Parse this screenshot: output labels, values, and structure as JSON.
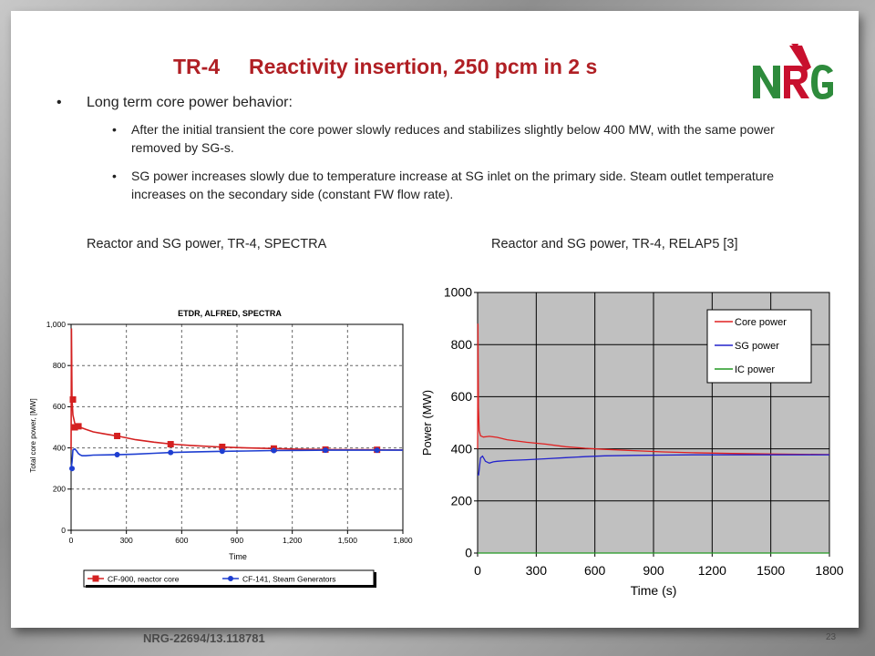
{
  "slide": {
    "title": "TR-4     Reactivity insertion, 250 pcm in 2 s",
    "logo_text": "NRG",
    "bullet_main": "Long term core power behavior:",
    "bullet_sub": [
      "After the initial transient the core power slowly reduces and stabilizes slightly below 400 MW, with the same power removed by SG-s.",
      "SG power increases slowly due to temperature increase at SG inlet on the primary side. Steam outlet temperature increases on the secondary side (constant FW flow rate)."
    ],
    "left_chart_caption": "Reactor and SG power, TR-4, SPECTRA",
    "right_chart_caption": "Reactor and SG power, TR-4, RELAP5 [3]",
    "footer": "NRG-22694/13.118781",
    "page_number": "23",
    "colors": {
      "title": "#b01f24",
      "logo_red": "#c8102e",
      "logo_green": "#2e8b3c"
    }
  },
  "chart_data": [
    {
      "type": "line",
      "title": "ETDR, ALFRED, SPECTRA",
      "xlabel": "Time",
      "ylabel": "Total core power, [MW]",
      "xlim": [
        0,
        1800
      ],
      "ylim": [
        0,
        1000
      ],
      "xticks": [
        "0",
        "300",
        "600",
        "900",
        "1,200",
        "1,500",
        "1,800"
      ],
      "yticks": [
        "0",
        "200",
        "400",
        "600",
        "800",
        "1,000"
      ],
      "grid": true,
      "legend_position": "bottom",
      "series": [
        {
          "name": "CF-900, reactor core",
          "color": "#d42020",
          "marker": "square",
          "x": [
            0,
            2,
            5,
            10,
            20,
            30,
            50,
            80,
            120,
            180,
            250,
            350,
            450,
            550,
            650,
            800,
            950,
            1100,
            1250,
            1400,
            1600,
            1800
          ],
          "y": [
            390,
            980,
            640,
            560,
            520,
            505,
            500,
            490,
            478,
            468,
            458,
            440,
            428,
            418,
            412,
            405,
            400,
            397,
            394,
            392,
            391,
            390
          ],
          "markers_x": [
            10,
            20,
            40,
            250,
            540,
            820,
            1100,
            1380,
            1660
          ],
          "markers_y": [
            635,
            500,
            505,
            458,
            418,
            405,
            397,
            392,
            391
          ]
        },
        {
          "name": "CF-141, Steam Generators",
          "color": "#1e3ed1",
          "marker": "circle",
          "x": [
            0,
            5,
            10,
            20,
            30,
            40,
            50,
            60,
            80,
            120,
            180,
            250,
            350,
            450,
            550,
            650,
            800,
            950,
            1100,
            1250,
            1400,
            1600,
            1800
          ],
          "y": [
            300,
            330,
            390,
            395,
            385,
            372,
            366,
            362,
            362,
            365,
            366,
            367,
            370,
            374,
            378,
            380,
            383,
            385,
            387,
            388,
            389,
            389,
            389
          ],
          "markers_x": [
            5,
            250,
            540,
            820,
            1100,
            1380,
            1660
          ],
          "markers_y": [
            300,
            367,
            378,
            384,
            387,
            389,
            389
          ]
        }
      ]
    },
    {
      "type": "line",
      "title": "",
      "xlabel": "Time (s)",
      "ylabel": "Power (MW)",
      "xlim": [
        0,
        1800
      ],
      "ylim": [
        0,
        1000
      ],
      "xticks": [
        "0",
        "300",
        "600",
        "900",
        "1200",
        "1500",
        "1800"
      ],
      "yticks": [
        "0",
        "200",
        "400",
        "600",
        "800",
        "1000"
      ],
      "grid": true,
      "legend_position": "top-right",
      "series": [
        {
          "name": "Core power",
          "color": "#e02020",
          "x": [
            0,
            2,
            4,
            8,
            15,
            30,
            60,
            100,
            150,
            250,
            350,
            450,
            550,
            650,
            800,
            950,
            1100,
            1300,
            1500,
            1800
          ],
          "y": [
            400,
            880,
            560,
            470,
            450,
            445,
            448,
            444,
            435,
            425,
            418,
            408,
            402,
            398,
            393,
            388,
            385,
            382,
            380,
            378
          ]
        },
        {
          "name": "SG power",
          "color": "#2222cc",
          "x": [
            0,
            5,
            15,
            25,
            40,
            60,
            80,
            100,
            150,
            250,
            350,
            450,
            550,
            650,
            800,
            950,
            1100,
            1300,
            1500,
            1800
          ],
          "y": [
            300,
            300,
            365,
            372,
            352,
            345,
            350,
            352,
            355,
            358,
            362,
            366,
            370,
            373,
            375,
            376,
            377,
            377,
            377,
            377
          ]
        },
        {
          "name": "IC power",
          "color": "#229922",
          "x": [
            0,
            1800
          ],
          "y": [
            0,
            0
          ]
        }
      ]
    }
  ]
}
